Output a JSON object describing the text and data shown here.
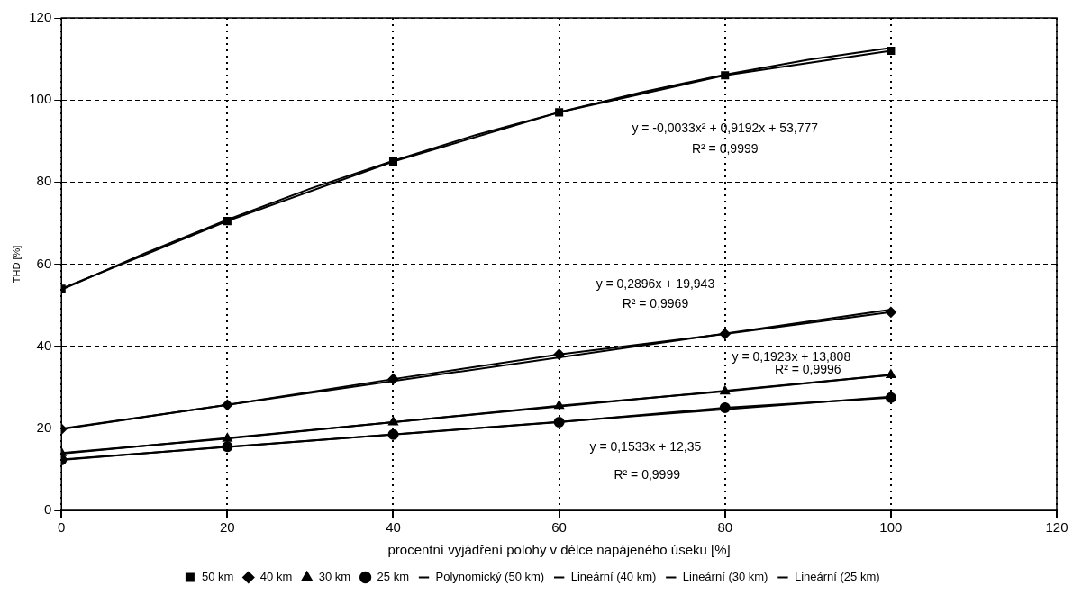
{
  "chart_data": {
    "type": "line",
    "xlabel": "procentní vyjádření polohy v délce napájeného úseku [%]",
    "ylabel": "THD [%]",
    "x": [
      0,
      20,
      40,
      60,
      80,
      100
    ],
    "series": [
      {
        "name": "50 km",
        "color": "#000000",
        "marker": "square",
        "values": [
          54,
          70.5,
          85,
          97,
          106,
          112
        ]
      },
      {
        "name": "40 km",
        "color": "#000000",
        "marker": "diamond",
        "values": [
          19.8,
          25.7,
          32,
          38,
          43,
          48.3
        ]
      },
      {
        "name": "30 km",
        "color": "#000000",
        "marker": "triangle",
        "values": [
          14,
          17.5,
          21.5,
          25.5,
          29,
          33
        ]
      },
      {
        "name": "25 km",
        "color": "#000000",
        "marker": "circle",
        "values": [
          12.3,
          15.5,
          18.5,
          21.5,
          25,
          27.5
        ]
      },
      {
        "name": "Polynomický (50 km)",
        "color": "#000000",
        "marker": "none",
        "x": [
          0,
          10,
          20,
          30,
          40,
          50,
          60,
          70,
          80,
          90,
          100
        ],
        "values": [
          53.8,
          62.6,
          70.8,
          78.4,
          85.2,
          91.5,
          97,
          101.9,
          106.2,
          109.8,
          112.7
        ]
      },
      {
        "name": "Lineární (40 km)",
        "color": "#000000",
        "marker": "none",
        "x": [
          0,
          100
        ],
        "values": [
          19.9,
          48.9
        ]
      },
      {
        "name": "Lineární (30 km)",
        "color": "#000000",
        "marker": "none",
        "x": [
          0,
          100
        ],
        "values": [
          13.8,
          33
        ]
      },
      {
        "name": "Lineární (25 km)",
        "color": "#000000",
        "marker": "none",
        "x": [
          0,
          100
        ],
        "values": [
          12.4,
          27.7
        ]
      }
    ],
    "annotations": [
      "y = -0,0033x² + 0,9192x + 53,777",
      "R² = 0,9999",
      "y = 0,2896x + 19,943",
      "R² = 0,9969",
      "y = 0,1923x + 13,808",
      "R² = 0,9996",
      "y = 0,1533x + 12,35",
      "R² = 0,9999"
    ],
    "xlim": [
      0,
      120
    ],
    "xticks": [
      0,
      20,
      40,
      60,
      80,
      100,
      120
    ],
    "ylim": [
      0,
      120
    ],
    "yticks": [
      0,
      20,
      40,
      60,
      80,
      100,
      120
    ],
    "grid": true,
    "legend": "bottom",
    "line_style": "solid"
  }
}
